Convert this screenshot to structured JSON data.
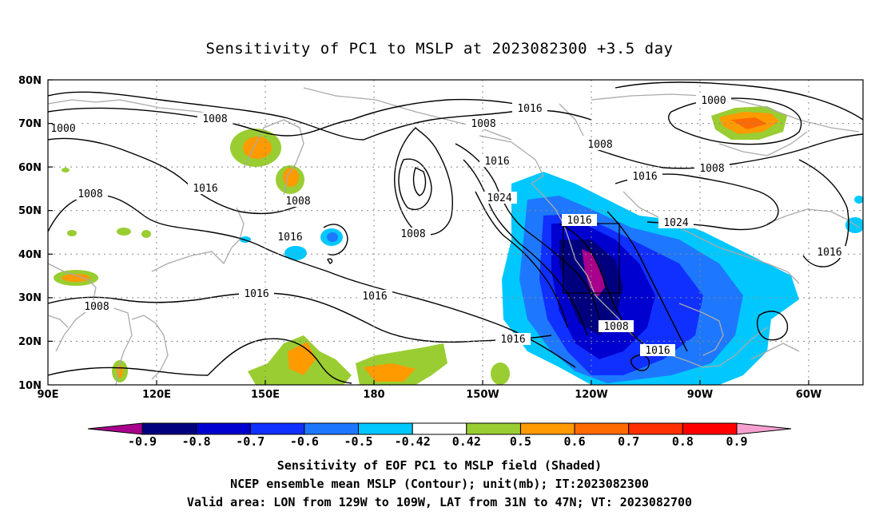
{
  "title": "Sensitivity of PC1 to MSLP at 2023082300 +3.5 day",
  "lat_labels": [
    "80N",
    "70N",
    "60N",
    "50N",
    "40N",
    "30N",
    "20N",
    "10N"
  ],
  "lon_labels": [
    "90E",
    "120E",
    "150E",
    "180",
    "150W",
    "120W",
    "90W",
    "60W"
  ],
  "contour_labels": [
    "1000",
    "1000",
    "1008",
    "1008",
    "1008",
    "1008",
    "1008",
    "1008",
    "1008",
    "1008",
    "1016",
    "1016",
    "1016",
    "1016",
    "1016",
    "1016",
    "1016",
    "1016",
    "1016",
    "1016",
    "1024",
    "1024"
  ],
  "colorbar": {
    "labels": [
      "-0.9",
      "-0.8",
      "-0.7",
      "-0.6",
      "-0.5",
      "-0.42",
      "0.42",
      "0.5",
      "0.6",
      "0.7",
      "0.8",
      "0.9"
    ],
    "colors": [
      "#a8008c",
      "#00007f",
      "#0000cf",
      "#1030ff",
      "#1e78ff",
      "#00c8ff",
      "#ffffff",
      "#9acd32",
      "#ff9a00",
      "#ff6a00",
      "#ff3000",
      "#ff0000",
      "#f6a0d0"
    ]
  },
  "footer": {
    "line1": "Sensitivity of EOF PC1 to MSLP field (Shaded)",
    "line2": "NCEP ensemble mean MSLP (Contour); unit(mb); IT:2023082300",
    "line3": "Valid area: LON from 129W to 109W, LAT from 31N to 47N; VT: 2023082700"
  },
  "valid_area": {
    "lon": [
      "129W",
      "109W"
    ],
    "lat": [
      "31N",
      "47N"
    ]
  }
}
